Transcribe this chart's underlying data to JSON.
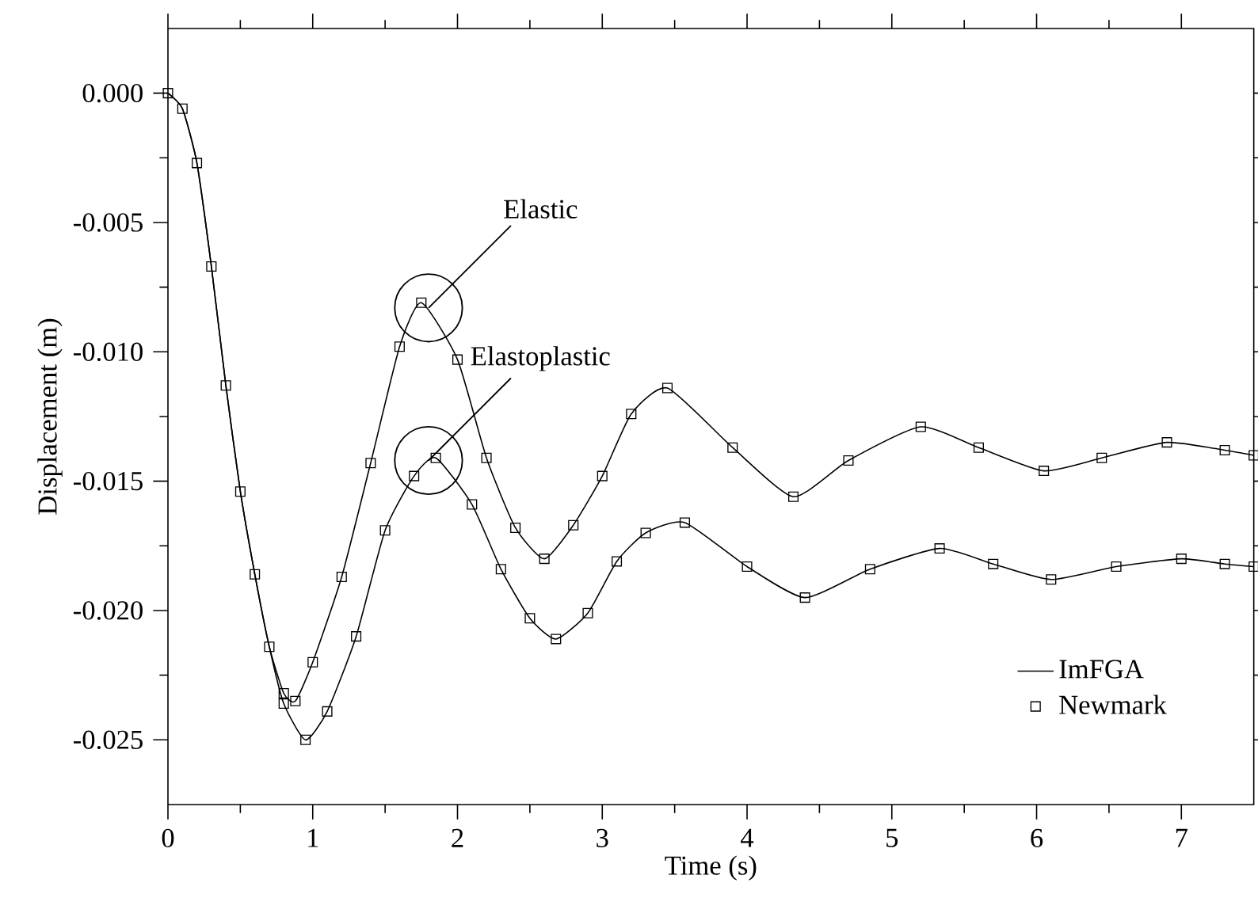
{
  "chart_data": {
    "type": "line",
    "xlabel": "Time (s)",
    "ylabel": "Displacement (m)",
    "xlim": [
      0,
      7.5
    ],
    "ylim": [
      -0.0275,
      0.0025
    ],
    "xticks": [
      0,
      1,
      2,
      3,
      4,
      5,
      6,
      7
    ],
    "yticks": [
      {
        "value": 0,
        "label": "0.000"
      },
      {
        "value": -0.005,
        "label": "-0.005"
      },
      {
        "value": -0.01,
        "label": "-0.010"
      },
      {
        "value": -0.015,
        "label": "-0.015"
      },
      {
        "value": -0.02,
        "label": "-0.020"
      },
      {
        "value": -0.025,
        "label": "-0.025"
      }
    ],
    "grid": false,
    "legend": "bottom right",
    "annotations": [
      {
        "text": "Elastic",
        "x": 1.8,
        "y": -0.0083
      },
      {
        "text": "Elastoplastic",
        "x": 1.8,
        "y": -0.0142
      }
    ],
    "series": [
      {
        "name": "ImFGA",
        "marker": "none",
        "color": "#000000",
        "x": [
          0,
          0.1,
          0.2,
          0.3,
          0.4,
          0.5,
          0.6,
          0.7,
          0.8,
          0.88,
          1.0,
          1.2,
          1.4,
          1.6,
          1.75,
          2.0,
          2.2,
          2.4,
          2.6,
          2.8,
          3.0,
          3.2,
          3.45,
          3.9,
          4.32,
          4.7,
          5.2,
          5.6,
          6.05,
          6.45,
          6.9,
          7.3,
          7.5
        ],
        "values": [
          0,
          -0.0006,
          -0.0027,
          -0.0067,
          -0.0113,
          -0.0154,
          -0.0186,
          -0.0214,
          -0.0232,
          -0.0235,
          -0.022,
          -0.0187,
          -0.0143,
          -0.0098,
          -0.0081,
          -0.0103,
          -0.0141,
          -0.0168,
          -0.018,
          -0.0167,
          -0.0148,
          -0.0124,
          -0.0114,
          -0.0137,
          -0.0156,
          -0.0142,
          -0.0129,
          -0.0137,
          -0.0146,
          -0.0141,
          -0.0135,
          -0.0138,
          -0.014
        ]
      },
      {
        "marker": "none",
        "color": "#000000",
        "x": [
          0,
          0.1,
          0.2,
          0.3,
          0.4,
          0.5,
          0.6,
          0.7,
          0.8,
          0.95,
          1.1,
          1.3,
          1.5,
          1.7,
          1.85,
          2.1,
          2.3,
          2.5,
          2.68,
          2.9,
          3.1,
          3.3,
          3.57,
          4.0,
          4.4,
          4.85,
          5.33,
          5.7,
          6.1,
          6.55,
          7.0,
          7.3,
          7.5
        ],
        "values": [
          0,
          -0.0006,
          -0.0027,
          -0.0067,
          -0.0113,
          -0.0154,
          -0.0186,
          -0.0214,
          -0.0236,
          -0.025,
          -0.0239,
          -0.021,
          -0.0169,
          -0.0148,
          -0.0141,
          -0.0159,
          -0.0184,
          -0.0203,
          -0.0211,
          -0.0201,
          -0.0181,
          -0.017,
          -0.0166,
          -0.0183,
          -0.0195,
          -0.0184,
          -0.0176,
          -0.0182,
          -0.0188,
          -0.0183,
          -0.018,
          -0.0182,
          -0.0183
        ]
      },
      {
        "name": "Newmark",
        "type": "scatter",
        "marker": "square",
        "color": "#000000",
        "x": [
          0,
          0.1,
          0.2,
          0.3,
          0.4,
          0.5,
          0.6,
          0.7,
          0.8,
          0.88,
          1.0,
          1.2,
          1.4,
          1.6,
          1.75,
          2.0,
          2.2,
          2.4,
          2.6,
          2.8,
          3.0,
          3.2,
          3.45,
          3.9,
          4.32,
          4.7,
          5.2,
          5.6,
          6.05,
          6.45,
          6.9,
          7.3,
          7.5
        ],
        "values": [
          0,
          -0.0006,
          -0.0027,
          -0.0067,
          -0.0113,
          -0.0154,
          -0.0186,
          -0.0214,
          -0.0232,
          -0.0235,
          -0.022,
          -0.0187,
          -0.0143,
          -0.0098,
          -0.0081,
          -0.0103,
          -0.0141,
          -0.0168,
          -0.018,
          -0.0167,
          -0.0148,
          -0.0124,
          -0.0114,
          -0.0137,
          -0.0156,
          -0.0142,
          -0.0129,
          -0.0137,
          -0.0146,
          -0.0141,
          -0.0135,
          -0.0138,
          -0.014
        ]
      },
      {
        "type": "scatter",
        "marker": "square",
        "color": "#000000",
        "x": [
          0.8,
          0.95,
          1.1,
          1.3,
          1.5,
          1.7,
          1.85,
          2.1,
          2.3,
          2.5,
          2.68,
          2.9,
          3.1,
          3.3,
          3.57,
          4.0,
          4.4,
          4.85,
          5.33,
          5.7,
          6.1,
          6.55,
          7.0,
          7.3,
          7.5
        ],
        "values": [
          -0.0236,
          -0.025,
          -0.0239,
          -0.021,
          -0.0169,
          -0.0148,
          -0.0141,
          -0.0159,
          -0.0184,
          -0.0203,
          -0.0211,
          -0.0201,
          -0.0181,
          -0.017,
          -0.0166,
          -0.0183,
          -0.0195,
          -0.0184,
          -0.0176,
          -0.0182,
          -0.0188,
          -0.0183,
          -0.018,
          -0.0182,
          -0.0183
        ]
      }
    ]
  }
}
